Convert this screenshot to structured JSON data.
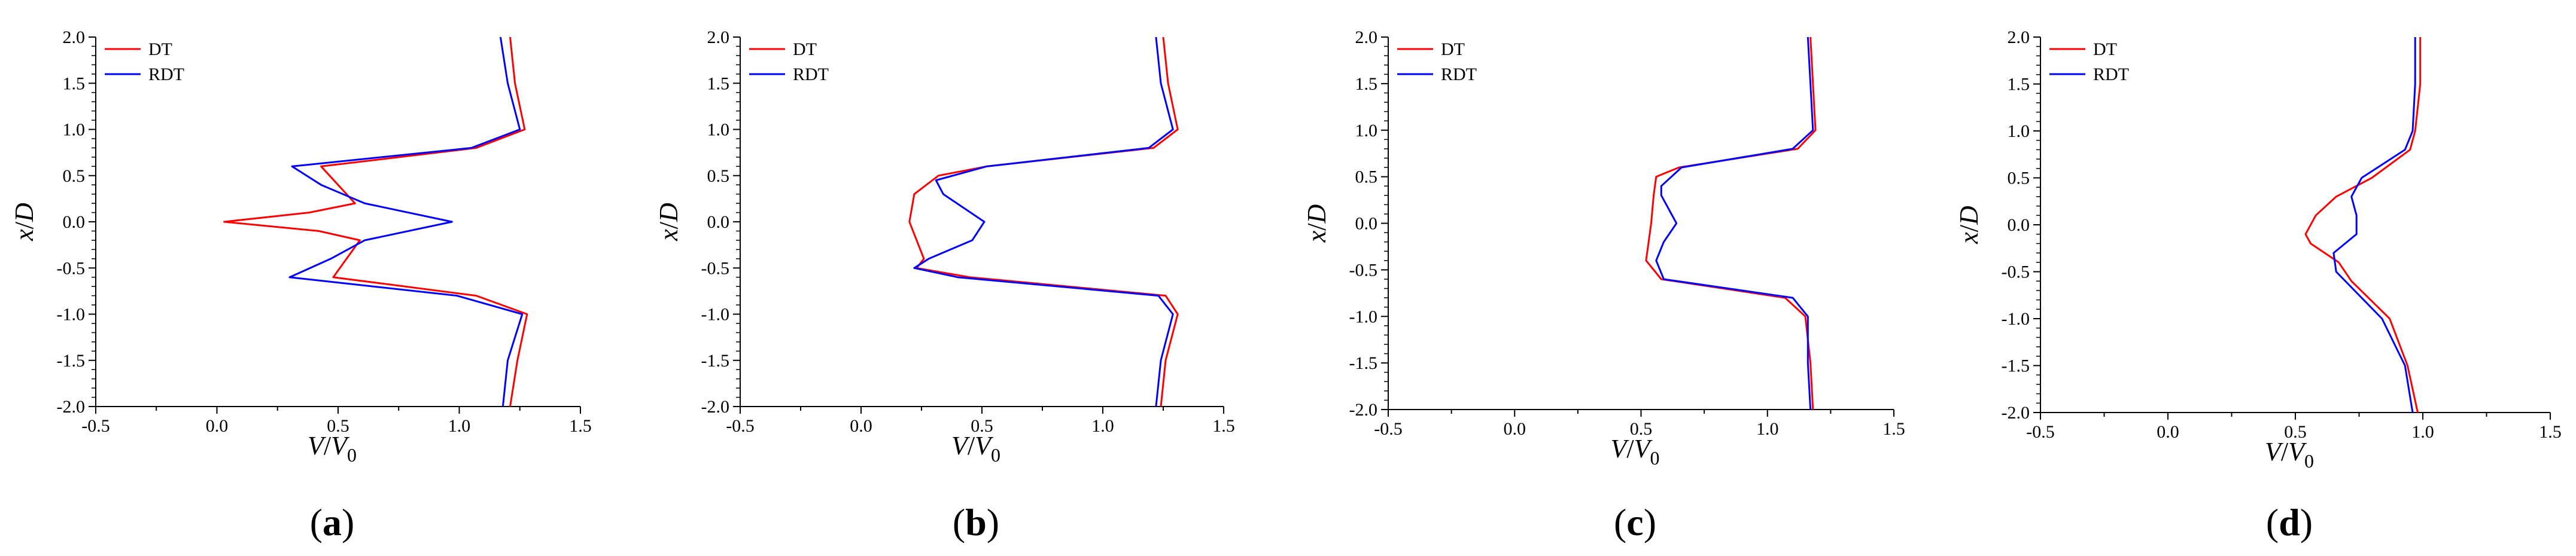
{
  "figure": {
    "colors": {
      "DT": "#ff0000",
      "RDT": "#0000ff",
      "axis": "#000000"
    },
    "xlabel": {
      "main": "V",
      "sep": "/",
      "den": "V",
      "sub": "0"
    },
    "ylabel": {
      "main": "x",
      "sep": "/",
      "den": "D"
    }
  },
  "chart_data": [
    {
      "type": "line",
      "panel_label": "a",
      "xlim": [
        -0.5,
        1.5
      ],
      "ylim": [
        -2.0,
        2.0
      ],
      "xticks": [
        "-0.5",
        "0.0",
        "0.5",
        "1.0",
        "1.5"
      ],
      "yticks": [
        "2.0",
        "1.5",
        "1.0",
        "0.5",
        "0.0",
        "-0.5",
        "-1.0",
        "-1.5",
        "-2.0"
      ],
      "legend": "top-left",
      "series": [
        {
          "name": "DT",
          "x": [
            1.21,
            1.23,
            1.27,
            1.07,
            0.43,
            0.57,
            0.38,
            0.03,
            0.42,
            0.59,
            0.48,
            1.07,
            1.28,
            1.24,
            1.21
          ],
          "y": [
            2.0,
            1.5,
            1.0,
            0.8,
            0.6,
            0.2,
            0.1,
            0.0,
            -0.1,
            -0.2,
            -0.6,
            -0.8,
            -1.0,
            -1.5,
            -2.0
          ]
        },
        {
          "name": "RDT",
          "x": [
            1.17,
            1.2,
            1.25,
            1.05,
            0.31,
            0.43,
            0.61,
            0.97,
            0.61,
            0.47,
            0.3,
            0.99,
            1.26,
            1.2,
            1.18
          ],
          "y": [
            2.0,
            1.5,
            1.0,
            0.8,
            0.6,
            0.4,
            0.2,
            0.0,
            -0.2,
            -0.4,
            -0.6,
            -0.8,
            -1.0,
            -1.5,
            -2.0
          ]
        }
      ]
    },
    {
      "type": "line",
      "panel_label": "b",
      "xlim": [
        -0.5,
        1.5
      ],
      "ylim": [
        -2.0,
        2.0
      ],
      "xticks": [
        "-0.5",
        "0.0",
        "0.5",
        "1.0",
        "1.5"
      ],
      "yticks": [
        "2.0",
        "1.5",
        "1.0",
        "0.5",
        "0.0",
        "-0.5",
        "-1.0",
        "-1.5",
        "-2.0"
      ],
      "legend": "top-left",
      "series": [
        {
          "name": "DT",
          "x": [
            1.25,
            1.27,
            1.31,
            1.21,
            0.52,
            0.32,
            0.22,
            0.2,
            0.23,
            0.26,
            0.23,
            0.45,
            1.26,
            1.31,
            1.26,
            1.24
          ],
          "y": [
            2.0,
            1.5,
            1.0,
            0.8,
            0.6,
            0.5,
            0.3,
            0.0,
            -0.2,
            -0.4,
            -0.5,
            -0.6,
            -0.8,
            -1.0,
            -1.5,
            -2.0
          ]
        },
        {
          "name": "RDT",
          "x": [
            1.22,
            1.24,
            1.29,
            1.19,
            0.52,
            0.31,
            0.34,
            0.51,
            0.46,
            0.28,
            0.22,
            0.4,
            1.23,
            1.29,
            1.24,
            1.22
          ],
          "y": [
            2.0,
            1.5,
            1.0,
            0.8,
            0.6,
            0.45,
            0.3,
            0.0,
            -0.2,
            -0.4,
            -0.5,
            -0.6,
            -0.8,
            -1.0,
            -1.5,
            -2.0
          ]
        }
      ]
    },
    {
      "type": "line",
      "panel_label": "c",
      "xlim": [
        -0.5,
        1.5
      ],
      "ylim": [
        -2.0,
        2.0
      ],
      "xticks": [
        "-0.5",
        "0.0",
        "0.5",
        "1.0",
        "1.5"
      ],
      "yticks": [
        "2.0",
        "1.5",
        "1.0",
        "0.5",
        "0.0",
        "-0.5",
        "-1.0",
        "-1.5",
        "-2.0"
      ],
      "legend": "top-left",
      "series": [
        {
          "name": "DT",
          "x": [
            1.17,
            1.18,
            1.19,
            1.12,
            0.65,
            0.56,
            0.55,
            0.54,
            0.53,
            0.52,
            0.58,
            1.07,
            1.15,
            1.17,
            1.18
          ],
          "y": [
            2.0,
            1.5,
            1.0,
            0.8,
            0.6,
            0.5,
            0.3,
            0.0,
            -0.2,
            -0.4,
            -0.6,
            -0.8,
            -1.0,
            -1.5,
            -2.0
          ]
        },
        {
          "name": "RDT",
          "x": [
            1.16,
            1.17,
            1.18,
            1.1,
            0.66,
            0.58,
            0.58,
            0.64,
            0.59,
            0.56,
            0.59,
            1.1,
            1.16,
            1.16,
            1.17
          ],
          "y": [
            2.0,
            1.5,
            1.0,
            0.8,
            0.6,
            0.4,
            0.3,
            0.0,
            -0.2,
            -0.4,
            -0.6,
            -0.8,
            -1.0,
            -1.5,
            -2.0
          ]
        }
      ]
    },
    {
      "type": "line",
      "panel_label": "d",
      "xlim": [
        -0.5,
        1.5
      ],
      "ylim": [
        -2.0,
        2.0
      ],
      "xticks": [
        "-0.5",
        "0.0",
        "0.5",
        "1.0",
        "1.5"
      ],
      "yticks": [
        "2.0",
        "1.5",
        "1.0",
        "0.5",
        "0.0",
        "-0.5",
        "-1.0",
        "-1.5",
        "-2.0"
      ],
      "legend": "top-left",
      "series": [
        {
          "name": "DT",
          "x": [
            0.99,
            0.99,
            0.97,
            0.95,
            0.8,
            0.66,
            0.58,
            0.54,
            0.56,
            0.67,
            0.72,
            0.87,
            0.94,
            0.98
          ],
          "y": [
            2.0,
            1.5,
            1.0,
            0.8,
            0.5,
            0.3,
            0.1,
            -0.1,
            -0.2,
            -0.4,
            -0.6,
            -1.0,
            -1.5,
            -2.0
          ]
        },
        {
          "name": "RDT",
          "x": [
            0.97,
            0.97,
            0.96,
            0.93,
            0.76,
            0.72,
            0.74,
            0.74,
            0.65,
            0.66,
            0.84,
            0.93,
            0.96
          ],
          "y": [
            2.0,
            1.5,
            1.0,
            0.8,
            0.5,
            0.3,
            0.1,
            -0.1,
            -0.3,
            -0.5,
            -1.0,
            -1.5,
            -2.0
          ]
        }
      ]
    }
  ]
}
